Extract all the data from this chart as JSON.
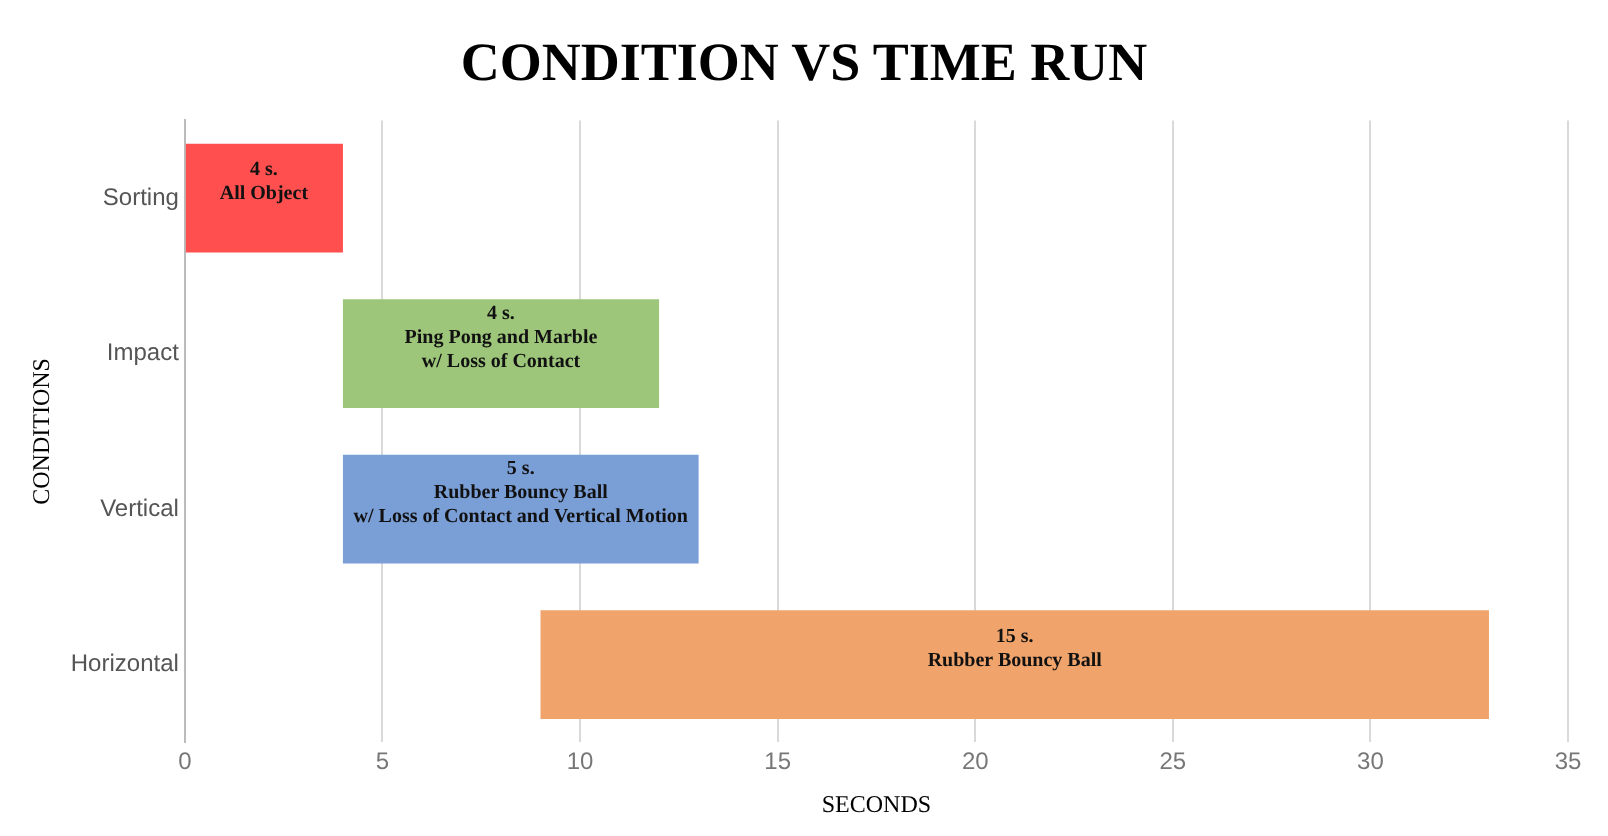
{
  "chart_data": {
    "type": "bar",
    "orientation": "horizontal",
    "title": "CONDITION VS TIME RUN",
    "xlabel": "SECONDS",
    "ylabel": "CONDITIONS",
    "categories": [
      "Sorting",
      "Impact",
      "Vertical",
      "Horizontal"
    ],
    "base": [
      0,
      4,
      4,
      9
    ],
    "values": [
      4,
      8,
      9,
      24
    ],
    "colors": [
      "#ff4f4f",
      "#9dc67a",
      "#7a9ed6",
      "#f0a46c"
    ],
    "annotations": [
      {
        "text": "4 s.\nAll Object",
        "x": 2,
        "y": "Sorting"
      },
      {
        "text": "4 s.\nPing Pong and Marble\nw/ Loss of Contact",
        "x": 8,
        "y": "Impact"
      },
      {
        "text": "5 s.\nRubber Bouncy Ball\nw/ Loss of Contact and Vertical Motion",
        "x": 8.5,
        "y": "Vertical"
      },
      {
        "text": "15 s.\nRubber Bouncy Ball",
        "x": 21,
        "y": "Horizontal"
      }
    ],
    "xlim": [
      0,
      35
    ],
    "xticks": [
      0,
      5,
      10,
      15,
      20,
      25,
      30,
      35
    ],
    "grid": "x",
    "legend": false
  }
}
